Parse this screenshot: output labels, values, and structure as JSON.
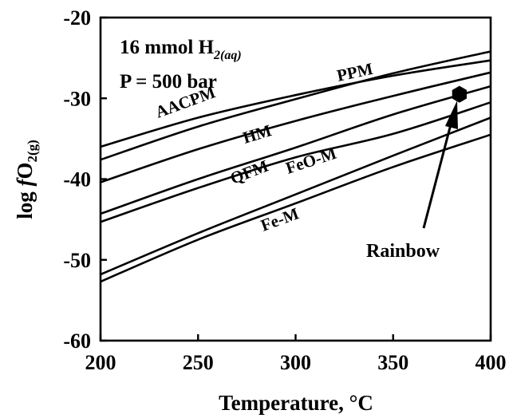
{
  "chart_data": {
    "type": "line",
    "title": "",
    "xlabel": "Temperature, °C",
    "ylabel_main": "log ",
    "ylabel_f": "f",
    "ylabel_species": "O",
    "ylabel_sub": "2(g)",
    "xlim": [
      200,
      400
    ],
    "ylim": [
      -60,
      -20
    ],
    "x_ticks": [
      200,
      250,
      300,
      350,
      400
    ],
    "y_ticks": [
      -60,
      -50,
      -40,
      -30,
      -20
    ],
    "x_tick_labels": [
      "200",
      "250",
      "300",
      "350",
      "400"
    ],
    "y_tick_labels": [
      "-60",
      "-50",
      "-40",
      "-30",
      "-20"
    ],
    "grid": false,
    "legend": "none",
    "annotations": {
      "conditions_line1": "16 mmol H",
      "conditions_line1_sub": "2(aq)",
      "conditions_line2": "P = 500 bar",
      "point_label": "Rainbow",
      "point": {
        "x": 384,
        "y": -29.5
      }
    },
    "x": [
      200,
      250,
      300,
      350,
      400
    ],
    "series": [
      {
        "name": "PPM",
        "values": [
          -36.0,
          -32.4,
          -29.6,
          -27.2,
          -25.3
        ]
      },
      {
        "name": "AACPM",
        "values": [
          -37.6,
          -33.5,
          -30.1,
          -26.9,
          -24.2
        ]
      },
      {
        "name": "HM",
        "values": [
          -40.4,
          -36.3,
          -32.8,
          -29.7,
          -26.8
        ]
      },
      {
        "name": "QFM",
        "values": [
          -44.3,
          -40.0,
          -36.1,
          -32.0,
          -28.5
        ]
      },
      {
        "name": "FeO-M",
        "values": [
          -45.3,
          -41.1,
          -37.3,
          -34.4,
          -30.5
        ]
      },
      {
        "name": "Fe-M",
        "values": [
          -51.8,
          -46.7,
          -41.9,
          -37.1,
          -32.4
        ]
      },
      {
        "name": "Fe-M",
        "values": [
          -52.7,
          -47.5,
          -43.0,
          -38.5,
          -34.5
        ]
      }
    ],
    "curve_labels": [
      "PPM",
      "AACPM",
      "HM",
      "QFM",
      "FeO-M",
      "Fe-M"
    ]
  }
}
